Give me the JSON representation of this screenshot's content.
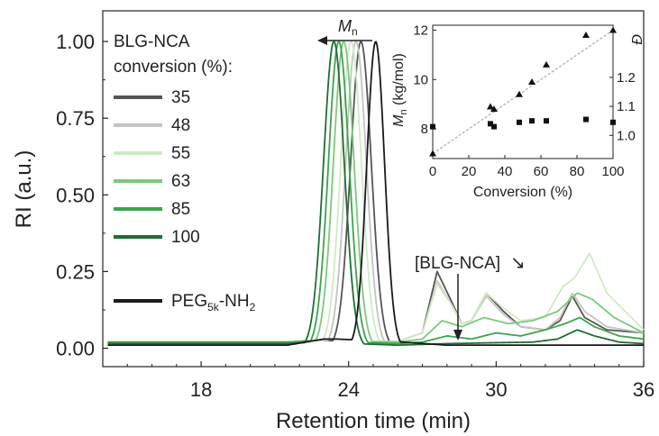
{
  "chart_data": {
    "type": "line",
    "xlabel": "Retention time (min)",
    "ylabel": "RI (a.u.)",
    "xlim": [
      14,
      36
    ],
    "ylim": [
      -0.06,
      1.1
    ],
    "xticks": [
      18,
      24,
      30,
      36
    ],
    "xtick_labels": [
      "18",
      "24",
      "30",
      "36"
    ],
    "yticks": [
      0.0,
      0.25,
      0.5,
      0.75,
      1.0
    ],
    "ytick_labels": [
      "0.00",
      "0.25",
      "0.50",
      "0.75",
      "1.00"
    ],
    "legend": {
      "title_lines": [
        "BLG-NCA",
        "conversion (%):"
      ],
      "placement": "top-left"
    },
    "arrow_annotation": {
      "symbol": "M",
      "subscript": "n",
      "direction": "left"
    },
    "monomer_annotation": {
      "text": "[BLG-NCA]",
      "diagonal_arrow": "↘"
    },
    "series": [
      {
        "name": "35",
        "color": "#555555",
        "peak": 24.5,
        "width": 0.42,
        "tail": [
          [
            21.5,
            0.02
          ],
          [
            22.6,
            0.025
          ],
          [
            26.0,
            0.022
          ],
          [
            27.0,
            0.05
          ],
          [
            27.6,
            0.25
          ],
          [
            28.2,
            0.15
          ],
          [
            28.6,
            0.08
          ],
          [
            29.0,
            0.09
          ],
          [
            29.6,
            0.18
          ],
          [
            30.3,
            0.12
          ],
          [
            31.0,
            0.07
          ],
          [
            32.0,
            0.06
          ],
          [
            32.6,
            0.09
          ],
          [
            33.1,
            0.17
          ],
          [
            33.6,
            0.1
          ],
          [
            34.5,
            0.06
          ],
          [
            36,
            0.05
          ]
        ]
      },
      {
        "name": "48",
        "color": "#c4c4c4",
        "peak": 24.3,
        "width": 0.42,
        "tail": [
          [
            21.5,
            0.02
          ],
          [
            22.6,
            0.025
          ],
          [
            26.0,
            0.022
          ],
          [
            27.0,
            0.05
          ],
          [
            27.6,
            0.22
          ],
          [
            28.2,
            0.14
          ],
          [
            28.6,
            0.08
          ],
          [
            29.0,
            0.09
          ],
          [
            29.6,
            0.17
          ],
          [
            30.3,
            0.11
          ],
          [
            31.0,
            0.07
          ],
          [
            32.0,
            0.06
          ],
          [
            32.6,
            0.1
          ],
          [
            33.1,
            0.18
          ],
          [
            33.6,
            0.12
          ],
          [
            34.5,
            0.07
          ],
          [
            36,
            0.05
          ]
        ]
      },
      {
        "name": "55",
        "color": "#d0ebc4",
        "peak": 24.1,
        "width": 0.42,
        "tail": [
          [
            21.5,
            0.02
          ],
          [
            22.6,
            0.025
          ],
          [
            26.0,
            0.022
          ],
          [
            27.0,
            0.05
          ],
          [
            27.6,
            0.21
          ],
          [
            28.2,
            0.14
          ],
          [
            28.6,
            0.08
          ],
          [
            29.0,
            0.09
          ],
          [
            29.6,
            0.18
          ],
          [
            30.3,
            0.13
          ],
          [
            31.0,
            0.09
          ],
          [
            32.0,
            0.1
          ],
          [
            32.7,
            0.2
          ],
          [
            33.2,
            0.23
          ],
          [
            33.8,
            0.31
          ],
          [
            34.5,
            0.18
          ],
          [
            36,
            0.06
          ]
        ]
      },
      {
        "name": "63",
        "color": "#7ec87e",
        "peak": 23.8,
        "width": 0.42,
        "tail": [
          [
            21.5,
            0.02
          ],
          [
            22.6,
            0.025
          ],
          [
            26.0,
            0.02
          ],
          [
            27.0,
            0.03
          ],
          [
            27.8,
            0.09
          ],
          [
            28.6,
            0.07
          ],
          [
            29.5,
            0.1
          ],
          [
            30.5,
            0.08
          ],
          [
            31.5,
            0.09
          ],
          [
            32.5,
            0.12
          ],
          [
            33.3,
            0.18
          ],
          [
            33.9,
            0.16
          ],
          [
            34.8,
            0.1
          ],
          [
            36,
            0.05
          ]
        ]
      },
      {
        "name": "85",
        "color": "#3ea34e",
        "peak": 23.6,
        "width": 0.42,
        "tail": [
          [
            21.5,
            0.02
          ],
          [
            22.6,
            0.025
          ],
          [
            26.0,
            0.015
          ],
          [
            27.0,
            0.02
          ],
          [
            28.0,
            0.04
          ],
          [
            29.0,
            0.03
          ],
          [
            30.0,
            0.05
          ],
          [
            31.0,
            0.04
          ],
          [
            32.0,
            0.06
          ],
          [
            32.8,
            0.08
          ],
          [
            33.4,
            0.1
          ],
          [
            34.0,
            0.07
          ],
          [
            35.0,
            0.04
          ],
          [
            36,
            0.03
          ]
        ]
      },
      {
        "name": "100",
        "color": "#1e6e34",
        "peak": 23.4,
        "width": 0.42,
        "tail": [
          [
            21.5,
            0.015
          ],
          [
            22.6,
            0.02
          ],
          [
            26.0,
            0.01
          ],
          [
            28.0,
            0.015
          ],
          [
            30.0,
            0.018
          ],
          [
            31.5,
            0.02
          ],
          [
            32.5,
            0.03
          ],
          [
            33.3,
            0.06
          ],
          [
            34.0,
            0.04
          ],
          [
            35.0,
            0.02
          ],
          [
            36,
            0.015
          ]
        ]
      },
      {
        "name": "PEG_5k-NH_2",
        "name_parts": [
          "PEG",
          "5k",
          "-NH",
          "2"
        ],
        "color": "#1a1a1a",
        "peak": 25.1,
        "width": 0.36,
        "tail": [
          [
            21.5,
            0.01
          ],
          [
            23.0,
            0.03
          ],
          [
            23.5,
            0.03
          ],
          [
            26.2,
            0.02
          ],
          [
            28,
            0.01
          ],
          [
            36,
            0.01
          ]
        ]
      }
    ],
    "inset": {
      "type": "scatter",
      "xlabel": "Conversion (%)",
      "ylabel": {
        "symbol": "M",
        "subscript": "n",
        "unit": " (kg/mol)"
      },
      "y2label": "Đ",
      "xlim": [
        0,
        100
      ],
      "ylim": [
        6.8,
        12.2
      ],
      "y2lim": [
        0.92,
        1.38
      ],
      "xticks": [
        0,
        20,
        40,
        60,
        80,
        100
      ],
      "xtick_labels": [
        "0",
        "20",
        "40",
        "60",
        "80",
        "100"
      ],
      "yticks": [
        8,
        10,
        12
      ],
      "ytick_labels": [
        "8",
        "10",
        "12"
      ],
      "y2ticks": [
        1.0,
        1.1,
        1.2
      ],
      "y2tick_labels": [
        "1.0",
        "1.1",
        "1.2"
      ],
      "mn_points": [
        [
          0,
          7.0
        ],
        [
          32,
          8.9
        ],
        [
          34,
          8.8
        ],
        [
          48,
          9.4
        ],
        [
          55,
          9.9
        ],
        [
          63,
          10.6
        ],
        [
          85,
          11.8
        ],
        [
          100,
          12.0
        ]
      ],
      "dispersity_points": [
        [
          0,
          1.03
        ],
        [
          32,
          1.04
        ],
        [
          34,
          1.03
        ],
        [
          48,
          1.045
        ],
        [
          55,
          1.05
        ],
        [
          63,
          1.05
        ],
        [
          85,
          1.055
        ],
        [
          100,
          1.045
        ]
      ],
      "fit_line": [
        [
          0,
          7.0
        ],
        [
          100,
          12.0
        ]
      ]
    }
  }
}
